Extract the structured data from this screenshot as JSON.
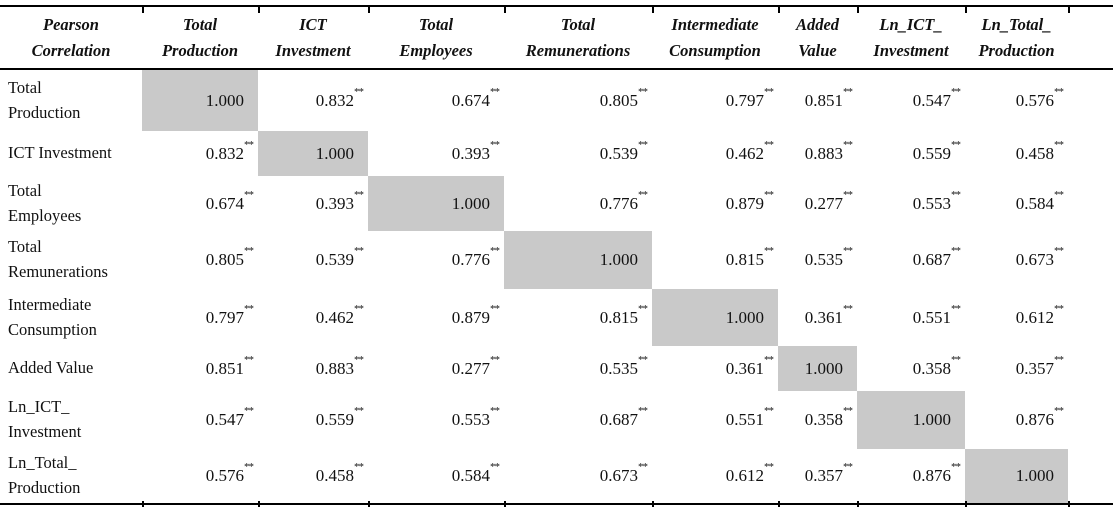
{
  "table": {
    "title_cell": "Pearson\nCorrelation",
    "column_headers": [
      "Total\nProduction",
      "ICT\nInvestment",
      "Total\nEmployees",
      "Total\nRemunerations",
      "Intermediate\nConsumption",
      "Added\nValue",
      "Ln_ICT_\nInvestment",
      "Ln_Total_\nProduction"
    ],
    "significance_marker": "**",
    "diagonal_value": "1.000",
    "diagonal_highlight_color": "#c9c9c9",
    "rule_color": "#000000",
    "rows": [
      {
        "label": "Total\nProduction",
        "values": [
          "1.000",
          "0.832**",
          "0.674**",
          "0.805**",
          "0.797**",
          "0.851**",
          "0.547**",
          "0.576**"
        ]
      },
      {
        "label": "ICT Investment",
        "values": [
          "0.832**",
          "1.000",
          "0.393**",
          "0.539**",
          "0.462**",
          "0.883**",
          "0.559**",
          "0.458**"
        ]
      },
      {
        "label": "Total\nEmployees",
        "values": [
          "0.674**",
          "0.393**",
          "1.000",
          "0.776**",
          "0.879**",
          "0.277**",
          "0.553**",
          "0.584**"
        ]
      },
      {
        "label": "Total\nRemunerations",
        "values": [
          "0.805**",
          "0.539**",
          "0.776**",
          "1.000",
          "0.815**",
          "0.535**",
          "0.687**",
          "0.673**"
        ]
      },
      {
        "label": "Intermediate\nConsumption",
        "values": [
          "0.797**",
          "0.462**",
          "0.879**",
          "0.815**",
          "1.000",
          "0.361**",
          "0.551**",
          "0.612**"
        ]
      },
      {
        "label": "Added Value",
        "values": [
          "0.851**",
          "0.883**",
          "0.277**",
          "0.535**",
          "0.361**",
          "1.000",
          "0.358**",
          "0.357**"
        ]
      },
      {
        "label": "Ln_ICT_\nInvestment",
        "values": [
          "0.547**",
          "0.559**",
          "0.553**",
          "0.687**",
          "0.551**",
          "0.358**",
          "1.000",
          "0.876**"
        ]
      },
      {
        "label": "Ln_Total_\nProduction",
        "values": [
          "0.576**",
          "0.458**",
          "0.584**",
          "0.673**",
          "0.612**",
          "0.357**",
          "0.876**",
          "1.000"
        ]
      }
    ]
  }
}
